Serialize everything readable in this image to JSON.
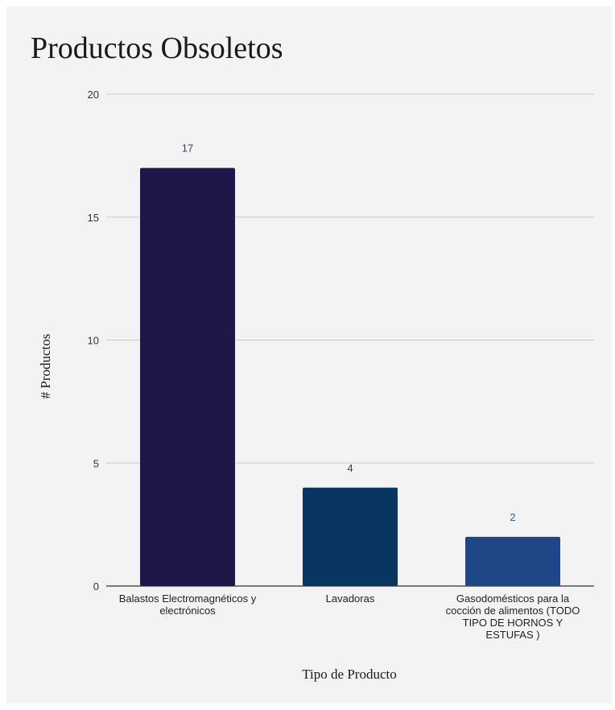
{
  "chart_data": {
    "type": "bar",
    "title": "Productos Obsoletos",
    "xlabel": "Tipo de Producto",
    "ylabel": "# Productos",
    "ylim": [
      0,
      20
    ],
    "yticks": [
      "0",
      "5",
      "10",
      "15",
      "20"
    ],
    "grid": true,
    "legend": "none",
    "categories": [
      "Balastos Electromagnéticos y electrónicos",
      "Lavadoras",
      "Gasodomésticos para la cocción de alimentos (TODO TIPO DE HORNOS Y ESTUFAS )"
    ],
    "values": [
      17,
      4,
      2
    ],
    "data_labels": [
      "17",
      "4",
      "2"
    ],
    "colors": [
      "#20164a",
      "#083660",
      "#1f4788"
    ],
    "label_colors": [
      "#3f3a78",
      "#23456e",
      "#3a5fa0"
    ]
  }
}
